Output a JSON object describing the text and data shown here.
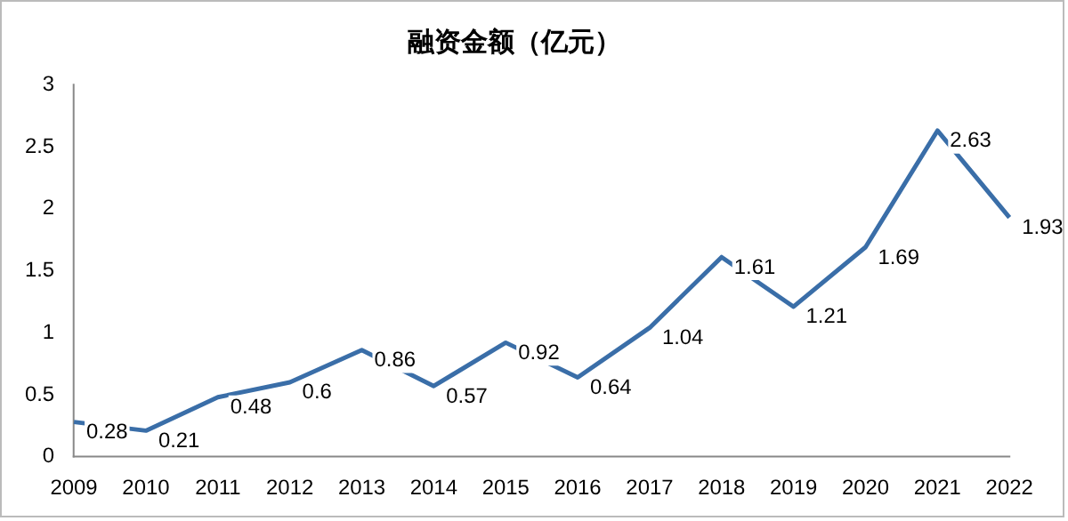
{
  "chart_data": {
    "type": "line",
    "title": "融资金额（亿元）",
    "categories": [
      "2009",
      "2010",
      "2011",
      "2012",
      "2013",
      "2014",
      "2015",
      "2016",
      "2017",
      "2018",
      "2019",
      "2020",
      "2021",
      "2022"
    ],
    "series": [
      {
        "color": "#3a6ea8",
        "values": [
          0.28,
          0.21,
          0.48,
          0.6,
          0.86,
          0.57,
          0.92,
          0.64,
          1.04,
          1.61,
          1.21,
          1.69,
          2.63,
          1.93
        ]
      }
    ],
    "ylim": [
      0,
      3
    ],
    "yticks": [
      0,
      0.5,
      1,
      1.5,
      2,
      2.5,
      3
    ],
    "grid": false,
    "legend": false,
    "marker": "none",
    "line_style": "solid",
    "data_labels": true
  }
}
